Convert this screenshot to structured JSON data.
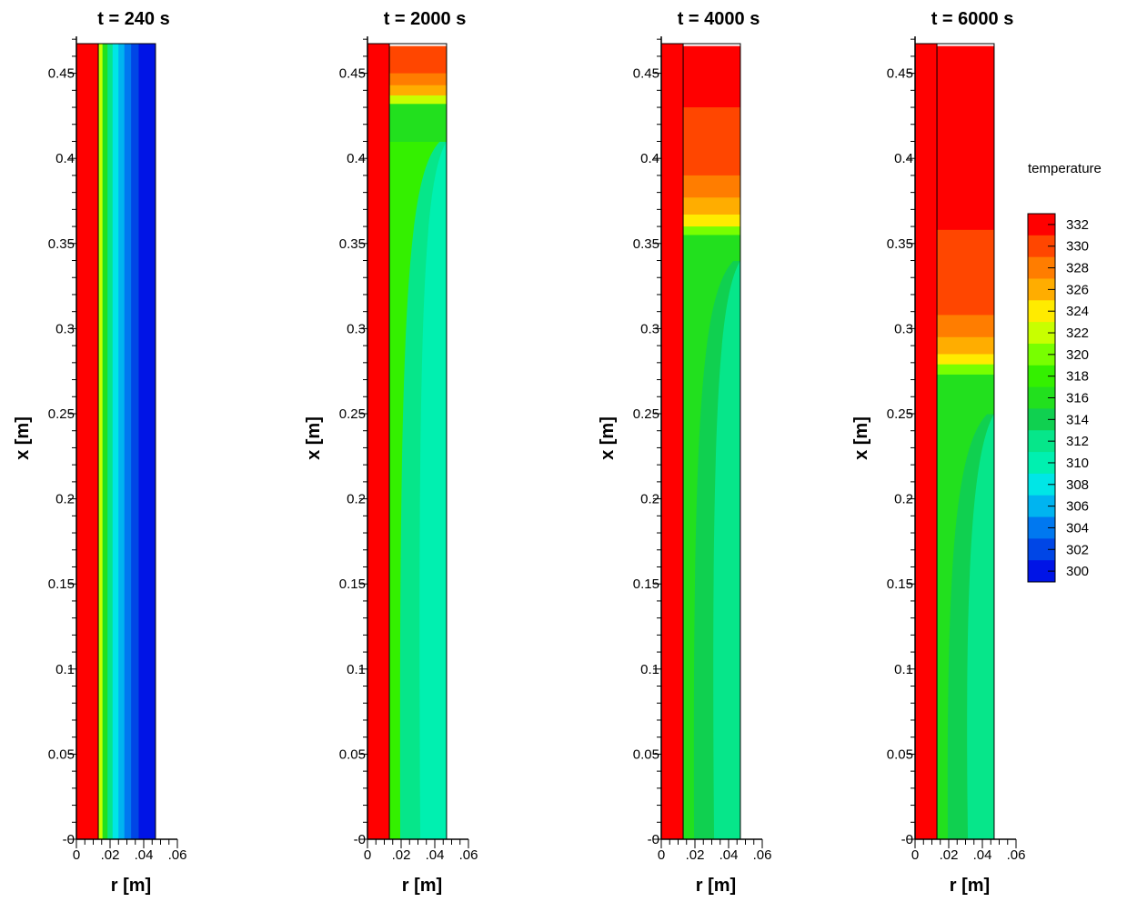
{
  "chart_data": {
    "type": "heatmap",
    "colorbar": {
      "title": "temperature",
      "levels": [
        332,
        330,
        328,
        326,
        324,
        322,
        320,
        318,
        316,
        314,
        312,
        310,
        308,
        306,
        304,
        302,
        300
      ],
      "colors": [
        "#ff0000",
        "#ff4600",
        "#ff7d00",
        "#ffad00",
        "#ffeb00",
        "#c8ff00",
        "#78ff00",
        "#34f000",
        "#22e01e",
        "#10d050",
        "#06e68a",
        "#00f0b0",
        "#00e6e6",
        "#00b4f0",
        "#0078f0",
        "#0046e6",
        "#0014e6"
      ]
    },
    "axes": {
      "xlabel": "r [m]",
      "ylabel": "x [m]",
      "r_ticks": [
        "0",
        ".02",
        ".04",
        ".06"
      ],
      "x_ticks": [
        "-0",
        "0.05",
        "0.1",
        "0.15",
        "0.2",
        "0.25",
        "0.3",
        "0.35",
        "0.4",
        "0.45"
      ],
      "r_range": [
        0,
        0.06
      ],
      "x_range": [
        0,
        0.47
      ],
      "wall_r": 0.013,
      "domain_r": 0.047,
      "domain_x": 0.466
    },
    "panels": [
      {
        "title": "t = 240 s",
        "wall_temperature": 332,
        "fluid_profile": "radial",
        "radial_bands": [
          {
            "r_end": 0.0155,
            "temperature": 322
          },
          {
            "r_end": 0.0185,
            "temperature": 316
          },
          {
            "r_end": 0.0215,
            "temperature": 312
          },
          {
            "r_end": 0.025,
            "temperature": 308
          },
          {
            "r_end": 0.0285,
            "temperature": 306
          },
          {
            "r_end": 0.0325,
            "temperature": 304
          },
          {
            "r_end": 0.037,
            "temperature": 302
          },
          {
            "r_end": 0.047,
            "temperature": 300
          }
        ]
      },
      {
        "title": "t = 2000 s",
        "wall_temperature": 332,
        "fluid_profile": "stratified",
        "core_temperature": 310,
        "near_wall_temperature": 318,
        "mid_temperature": 312,
        "top_layers": [
          {
            "x_from": 0.45,
            "x_to": 0.466,
            "temperature": 330
          },
          {
            "x_from": 0.443,
            "x_to": 0.45,
            "temperature": 328
          },
          {
            "x_from": 0.437,
            "x_to": 0.443,
            "temperature": 326
          },
          {
            "x_from": 0.432,
            "x_to": 0.437,
            "temperature": 322
          },
          {
            "x_from": 0.41,
            "x_to": 0.432,
            "temperature": 316
          }
        ]
      },
      {
        "title": "t = 4000 s",
        "wall_temperature": 332,
        "fluid_profile": "stratified",
        "core_temperature": 312,
        "near_wall_temperature": 316,
        "mid_temperature": 314,
        "top_layers": [
          {
            "x_from": 0.43,
            "x_to": 0.466,
            "temperature": 332
          },
          {
            "x_from": 0.39,
            "x_to": 0.43,
            "temperature": 330
          },
          {
            "x_from": 0.377,
            "x_to": 0.39,
            "temperature": 328
          },
          {
            "x_from": 0.367,
            "x_to": 0.377,
            "temperature": 326
          },
          {
            "x_from": 0.36,
            "x_to": 0.367,
            "temperature": 324
          },
          {
            "x_from": 0.355,
            "x_to": 0.36,
            "temperature": 320
          },
          {
            "x_from": 0.34,
            "x_to": 0.355,
            "temperature": 316
          }
        ]
      },
      {
        "title": "t = 6000 s",
        "wall_temperature": 332,
        "fluid_profile": "stratified",
        "core_temperature": 312,
        "near_wall_temperature": 316,
        "mid_temperature": 314,
        "top_layers": [
          {
            "x_from": 0.358,
            "x_to": 0.466,
            "temperature": 332
          },
          {
            "x_from": 0.308,
            "x_to": 0.358,
            "temperature": 330
          },
          {
            "x_from": 0.295,
            "x_to": 0.308,
            "temperature": 328
          },
          {
            "x_from": 0.285,
            "x_to": 0.295,
            "temperature": 326
          },
          {
            "x_from": 0.279,
            "x_to": 0.285,
            "temperature": 324
          },
          {
            "x_from": 0.273,
            "x_to": 0.279,
            "temperature": 320
          },
          {
            "x_from": 0.25,
            "x_to": 0.273,
            "temperature": 316
          }
        ]
      }
    ]
  }
}
